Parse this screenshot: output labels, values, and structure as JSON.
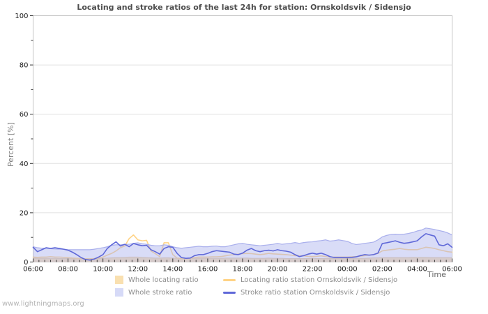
{
  "page": {
    "watermark": "www.lightningmaps.org"
  },
  "chart_data": {
    "type": "area",
    "title": "Locating and stroke ratios of the last 24h for station: Ornskoldsvik / Sidensjo",
    "ylabel": "Percent  [%]",
    "xlabel": "Time",
    "ylim": [
      0,
      100
    ],
    "y_major_ticks": [
      0,
      20,
      40,
      60,
      80,
      100
    ],
    "y_minor_ticks": [
      10,
      30,
      50,
      70,
      90
    ],
    "x_tick_labels": [
      "06:00",
      "08:00",
      "10:00",
      "12:00",
      "14:00",
      "16:00",
      "18:00",
      "20:00",
      "22:00",
      "00:00",
      "02:00",
      "04:00",
      "06:00"
    ],
    "x_minor_interval_minutes": 20,
    "sample_interval_minutes": 15,
    "grid": "horizontal-major",
    "legend_position": "bottom",
    "series": [
      {
        "name": "Whole locating ratio",
        "type": "area",
        "color": "#f9e0b0",
        "edge": "#e6cda2",
        "legend_color": "#f9e0b0",
        "values": [
          1.6,
          1.5,
          1.5,
          1.5,
          1.5,
          1.5,
          1.4,
          1.4,
          1.4,
          1.3,
          1.3,
          1.3,
          1.3,
          1.3,
          1.3,
          1.4,
          1.5,
          1.6,
          1.7,
          1.8,
          1.8,
          1.9,
          2.0,
          2.0,
          2.0,
          1.9,
          1.8,
          1.7,
          1.6,
          1.6,
          1.7,
          1.7,
          1.6,
          1.5,
          1.4,
          1.4,
          1.4,
          1.5,
          1.5,
          1.5,
          1.5,
          1.5,
          1.5,
          1.5,
          1.6,
          1.6,
          1.6,
          1.6,
          1.6,
          1.6,
          1.5,
          1.5,
          1.5,
          1.5,
          1.6,
          1.5,
          1.5,
          1.5,
          1.4,
          1.4,
          1.4,
          1.4,
          1.4,
          1.4,
          1.5,
          1.4,
          1.4,
          1.4,
          1.4,
          1.4,
          1.4,
          1.4,
          1.4,
          1.5,
          1.5,
          1.5,
          1.5,
          1.6,
          1.7,
          1.7,
          1.8,
          1.8,
          1.8,
          1.8,
          1.8,
          1.8,
          1.8,
          1.9,
          1.9,
          1.9,
          1.9,
          1.8,
          1.8,
          1.8,
          1.8,
          1.8,
          1.7
        ]
      },
      {
        "name": "Locating ratio station Ornskoldsvik / Sidensjo",
        "type": "line",
        "color": "#ffd385",
        "values": [
          2.0,
          1.9,
          2.0,
          2.0,
          2.2,
          2.0,
          2.0,
          1.9,
          1.8,
          1.6,
          1.5,
          1.4,
          1.3,
          1.3,
          1.4,
          1.6,
          2.0,
          2.8,
          3.5,
          4.5,
          5.8,
          6.5,
          9.5,
          11.0,
          9.0,
          8.6,
          8.8,
          4.5,
          3.4,
          2.2,
          7.8,
          7.8,
          3.0,
          1.6,
          1.4,
          1.4,
          1.5,
          1.8,
          2.0,
          2.0,
          2.0,
          2.1,
          2.1,
          2.2,
          2.5,
          2.8,
          3.0,
          3.2,
          3.4,
          3.5,
          3.4,
          3.2,
          3.0,
          3.2,
          3.5,
          3.3,
          3.2,
          3.1,
          3.0,
          2.8,
          2.6,
          2.5,
          2.5,
          2.3,
          2.2,
          2.3,
          2.5,
          2.2,
          2.0,
          2.0,
          2.0,
          2.0,
          2.0,
          2.1,
          2.2,
          2.4,
          2.6,
          2.8,
          3.0,
          3.5,
          4.5,
          4.8,
          5.0,
          5.2,
          5.5,
          5.2,
          5.0,
          5.0,
          5.0,
          5.5,
          6.0,
          5.8,
          5.5,
          5.0,
          4.6,
          4.2,
          4.0
        ]
      },
      {
        "name": "Whole stroke ratio",
        "type": "area",
        "color": "#aab2ee",
        "opacity": 0.45,
        "edge": "#a9afec",
        "legend_color": "#d6daf7",
        "values": [
          6.2,
          5.8,
          5.6,
          5.6,
          5.4,
          5.3,
          5.2,
          5.2,
          5.0,
          5.0,
          5.0,
          5.0,
          5.0,
          5.0,
          5.2,
          5.5,
          5.8,
          6.2,
          6.8,
          7.0,
          7.0,
          7.2,
          7.2,
          7.6,
          7.8,
          7.4,
          7.2,
          6.8,
          6.6,
          6.6,
          7.0,
          6.8,
          6.2,
          5.8,
          5.6,
          5.8,
          6.0,
          6.2,
          6.4,
          6.2,
          6.2,
          6.4,
          6.5,
          6.2,
          6.2,
          6.6,
          7.0,
          7.4,
          7.6,
          7.2,
          7.0,
          6.8,
          6.6,
          6.8,
          7.0,
          7.2,
          7.6,
          7.2,
          7.4,
          7.6,
          7.9,
          7.6,
          7.9,
          8.1,
          8.2,
          8.5,
          8.7,
          9.0,
          8.5,
          8.7,
          9.0,
          8.7,
          8.4,
          7.6,
          7.1,
          7.3,
          7.6,
          7.8,
          8.1,
          9.0,
          10.2,
          10.8,
          11.2,
          11.3,
          11.2,
          11.3,
          11.6,
          12.0,
          12.6,
          13.0,
          13.8,
          13.5,
          13.2,
          12.8,
          12.4,
          11.8,
          11.0
        ]
      },
      {
        "name": "Stroke ratio station Ornskoldsvik / Sidensjo",
        "type": "line",
        "color": "#5f68d8",
        "values": [
          6.0,
          4.2,
          5.0,
          5.8,
          5.5,
          5.8,
          5.5,
          5.2,
          4.8,
          4.0,
          3.0,
          1.8,
          1.0,
          0.8,
          1.2,
          2.0,
          3.0,
          5.5,
          7.0,
          8.2,
          6.5,
          7.2,
          6.2,
          7.5,
          7.0,
          6.6,
          6.8,
          5.0,
          4.2,
          3.2,
          5.5,
          6.2,
          6.0,
          3.5,
          1.8,
          1.5,
          1.6,
          2.6,
          3.0,
          3.0,
          3.5,
          4.2,
          4.6,
          4.4,
          4.2,
          4.0,
          3.2,
          3.0,
          3.6,
          4.8,
          5.5,
          4.6,
          4.2,
          4.6,
          4.8,
          4.5,
          5.0,
          4.6,
          4.4,
          4.0,
          3.0,
          2.2,
          2.6,
          3.2,
          3.6,
          3.2,
          3.6,
          3.0,
          2.2,
          1.8,
          1.8,
          1.8,
          1.8,
          1.9,
          2.1,
          2.6,
          3.0,
          2.8,
          3.0,
          3.6,
          7.5,
          7.8,
          8.2,
          8.6,
          8.0,
          7.6,
          7.8,
          8.2,
          8.6,
          10.2,
          11.5,
          11.0,
          10.5,
          7.0,
          6.6,
          7.4,
          6.0
        ]
      }
    ]
  }
}
